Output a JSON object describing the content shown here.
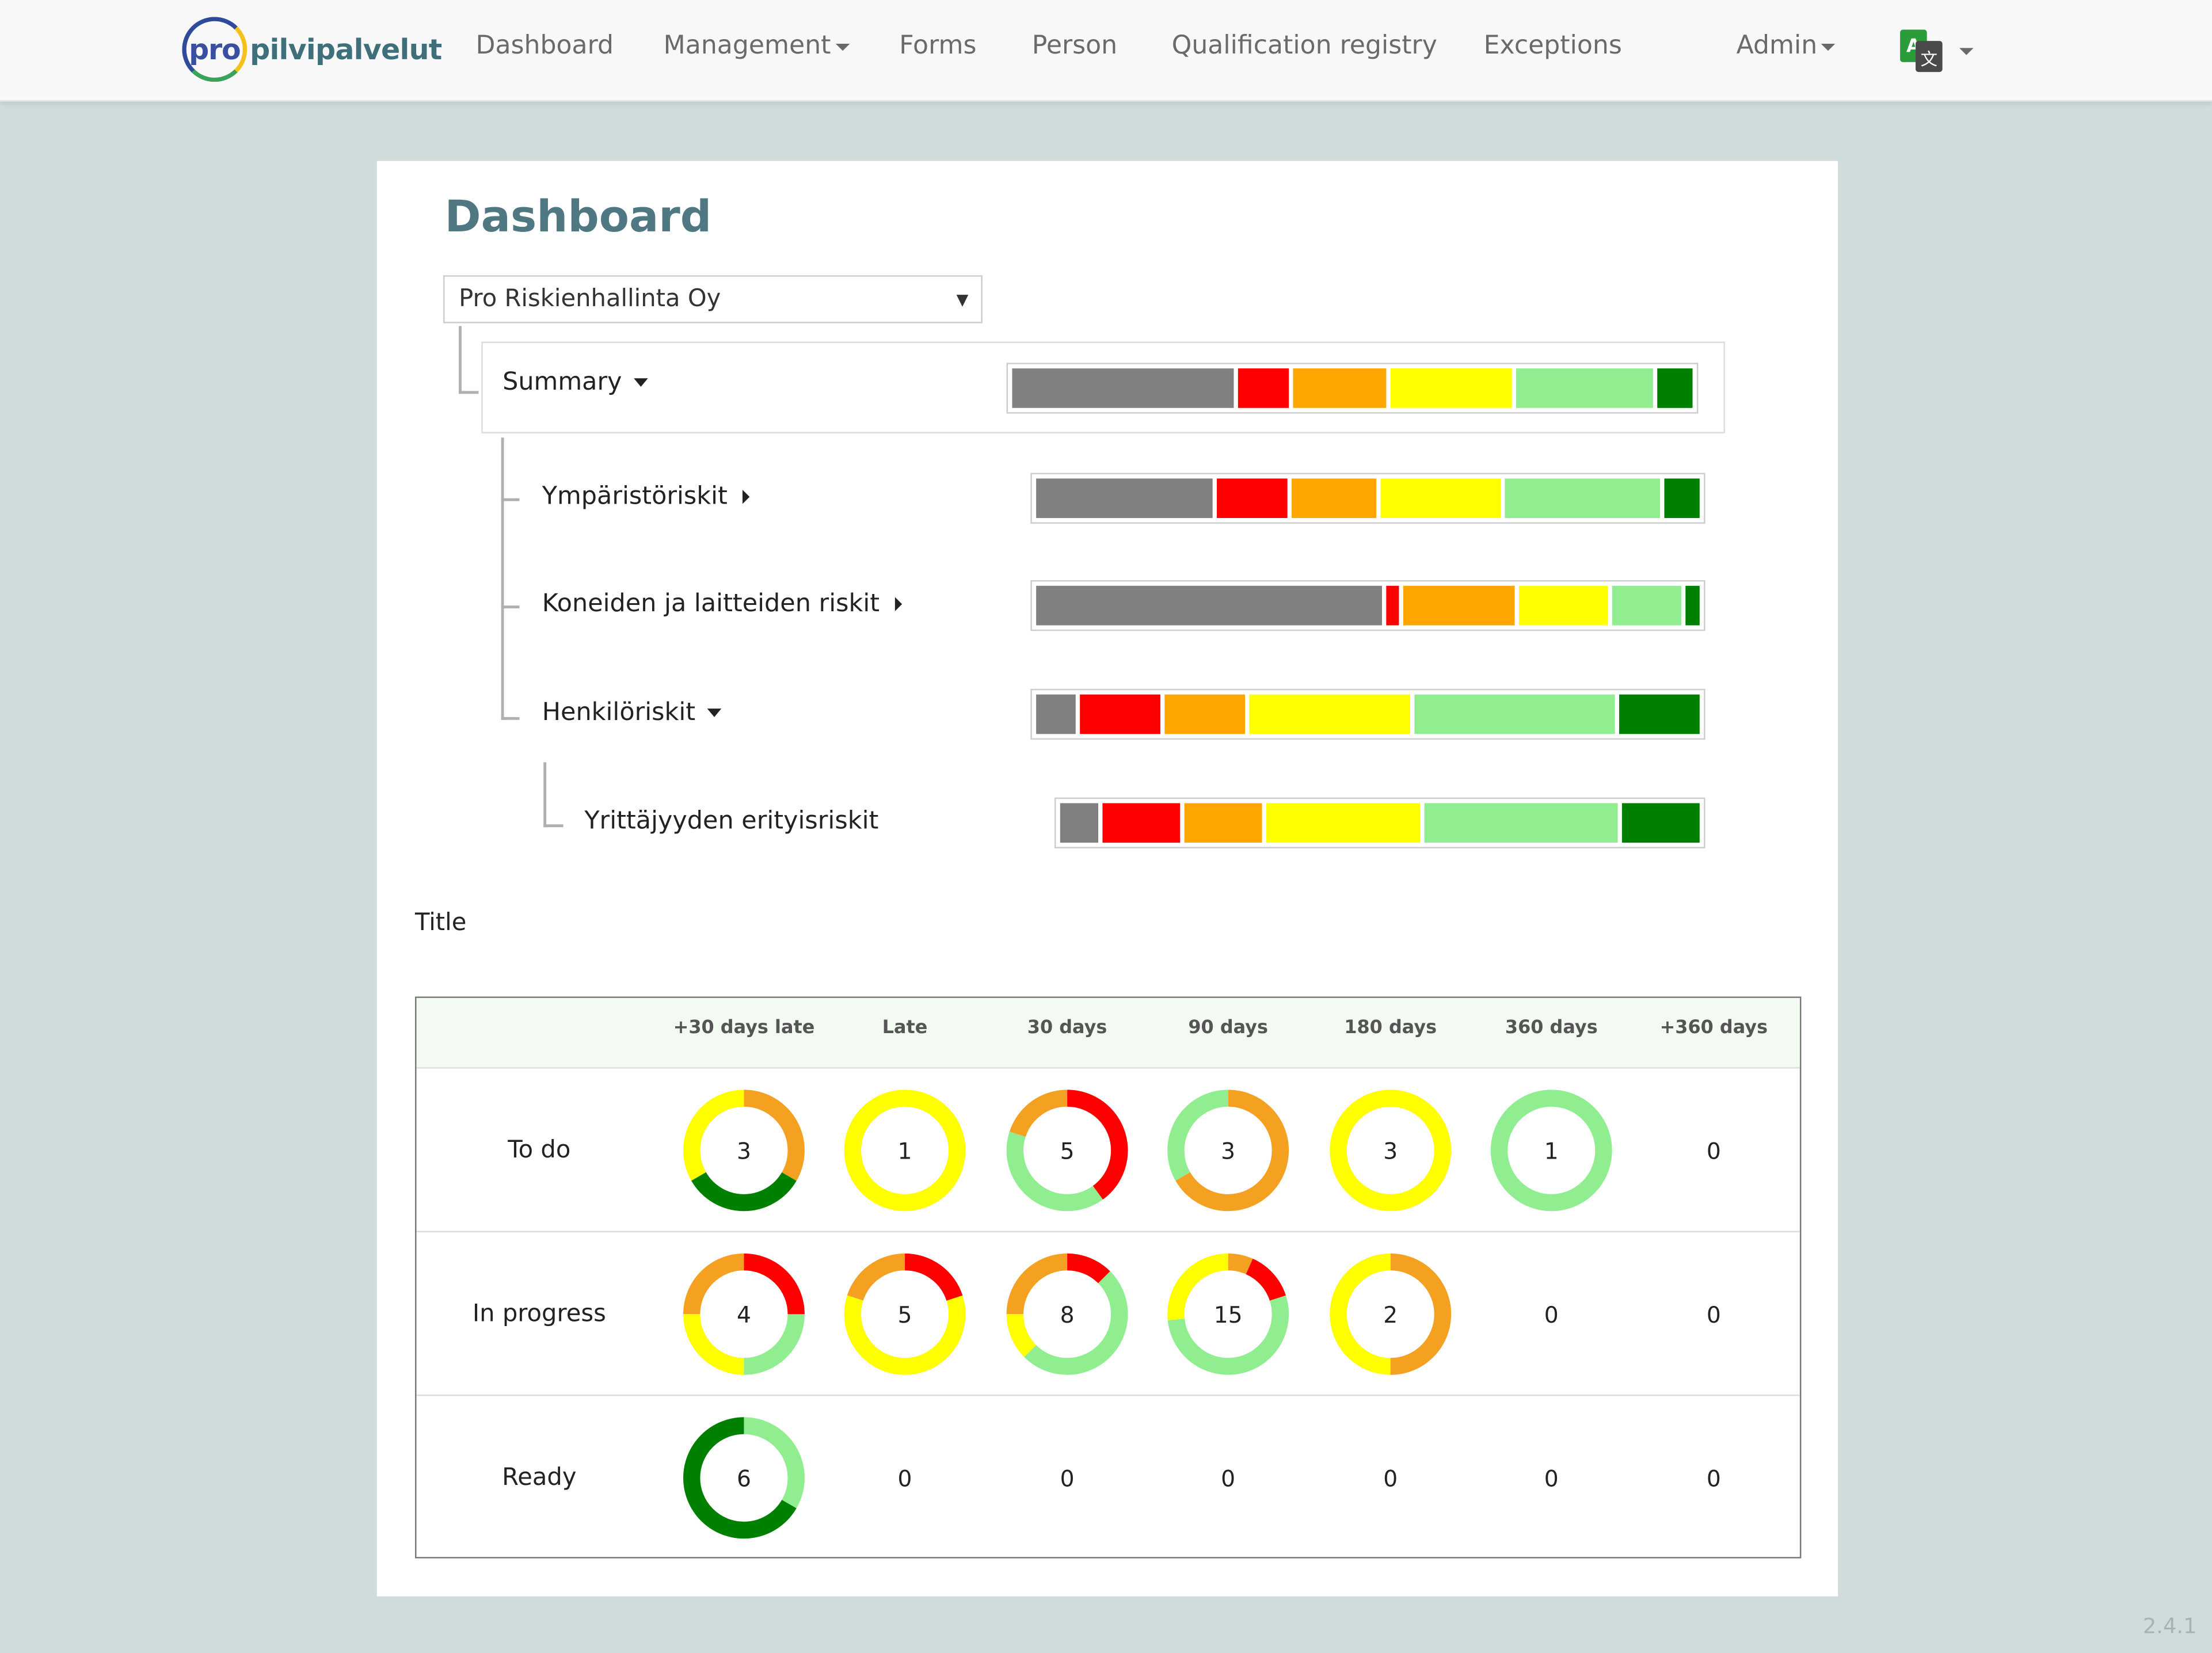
{
  "navbar": {
    "logo_pro": "pro",
    "logo_text": "pilvipalvelut",
    "items": [
      {
        "label": "Dashboard"
      },
      {
        "label": "Management"
      },
      {
        "label": "Forms"
      },
      {
        "label": "Person"
      },
      {
        "label": "Qualification registry"
      },
      {
        "label": "Exceptions"
      }
    ],
    "admin_label": "Admin",
    "language_icon": "translate-icon"
  },
  "page": {
    "title": "Dashboard",
    "company_select": "Pro Riskienhallinta Oy"
  },
  "risk_colors": {
    "unassessed": "#808080",
    "critical": "#ff0000",
    "high": "#ffa500",
    "medium": "#ffff00",
    "low": "#90ee90",
    "none": "#008000"
  },
  "risk_tree": [
    {
      "label": "Summary",
      "expanded": true,
      "segments": [
        31,
        7,
        13,
        17,
        19,
        5
      ]
    },
    {
      "label": "Ympäristöriskit",
      "expanded": false,
      "segments": [
        25,
        10,
        12,
        17,
        22,
        5
      ]
    },
    {
      "label": "Koneiden ja laitteiden riskit",
      "expanded": false,
      "segments": [
        50,
        2,
        16,
        13,
        10,
        2
      ]
    },
    {
      "label": "Henkilöriskit",
      "expanded": true,
      "segments": [
        6,
        12,
        12,
        24,
        30,
        12
      ]
    },
    {
      "label": "Yrittäjyyden erityisriskit",
      "expanded": null,
      "segments": [
        6,
        12,
        12,
        24,
        30,
        12
      ]
    }
  ],
  "tasks": {
    "title": "Title",
    "columns": [
      "+30 days late",
      "Late",
      "30 days",
      "90 days",
      "180 days",
      "360 days",
      "+360 days"
    ],
    "rows": [
      {
        "label": "To do",
        "cells": [
          {
            "total": 3,
            "parts": [
              [
                "#f4a020",
                1
              ],
              [
                "#008000",
                1
              ],
              [
                "#ffff00",
                1
              ]
            ]
          },
          {
            "total": 1,
            "parts": [
              [
                "#ffff00",
                1
              ]
            ]
          },
          {
            "total": 5,
            "parts": [
              [
                "#ff0000",
                2
              ],
              [
                "#90ee90",
                2
              ],
              [
                "#f4a020",
                1
              ]
            ]
          },
          {
            "total": 3,
            "parts": [
              [
                "#f4a020",
                2
              ],
              [
                "#90ee90",
                1
              ]
            ]
          },
          {
            "total": 3,
            "parts": [
              [
                "#ffff00",
                3
              ]
            ]
          },
          {
            "total": 1,
            "parts": [
              [
                "#90ee90",
                1
              ]
            ]
          },
          {
            "total": 0,
            "parts": []
          }
        ]
      },
      {
        "label": "In progress",
        "cells": [
          {
            "total": 4,
            "parts": [
              [
                "#ff0000",
                1
              ],
              [
                "#90ee90",
                1
              ],
              [
                "#ffff00",
                1
              ],
              [
                "#f4a020",
                1
              ]
            ]
          },
          {
            "total": 5,
            "parts": [
              [
                "#ff0000",
                1
              ],
              [
                "#ffff00",
                3
              ],
              [
                "#f4a020",
                1
              ]
            ]
          },
          {
            "total": 8,
            "parts": [
              [
                "#ff0000",
                1
              ],
              [
                "#90ee90",
                4
              ],
              [
                "#ffff00",
                1
              ],
              [
                "#f4a020",
                2
              ]
            ]
          },
          {
            "total": 15,
            "parts": [
              [
                "#f4a020",
                1
              ],
              [
                "#ff0000",
                2
              ],
              [
                "#90ee90",
                8
              ],
              [
                "#ffff00",
                4
              ]
            ]
          },
          {
            "total": 2,
            "parts": [
              [
                "#f4a020",
                1
              ],
              [
                "#ffff00",
                1
              ]
            ]
          },
          {
            "total": 0,
            "parts": []
          },
          {
            "total": 0,
            "parts": []
          }
        ]
      },
      {
        "label": "Ready",
        "cells": [
          {
            "total": 6,
            "parts": [
              [
                "#90ee90",
                2
              ],
              [
                "#008000",
                4
              ]
            ]
          },
          {
            "total": 0,
            "parts": []
          },
          {
            "total": 0,
            "parts": []
          },
          {
            "total": 0,
            "parts": []
          },
          {
            "total": 0,
            "parts": []
          },
          {
            "total": 0,
            "parts": []
          },
          {
            "total": 0,
            "parts": []
          }
        ]
      }
    ]
  },
  "version": "2.4.1"
}
